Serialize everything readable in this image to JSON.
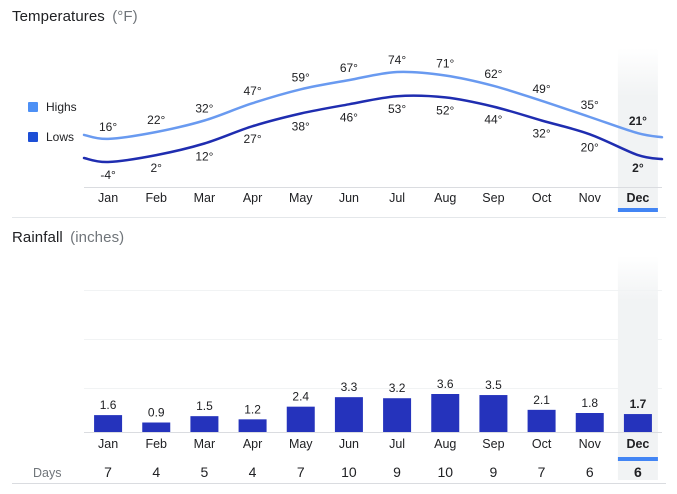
{
  "selected_month": "Dec",
  "sections": {
    "temperatures": {
      "title": "Temperatures",
      "unit": "(°F)",
      "legend": [
        {
          "label": "Highs"
        },
        {
          "label": "Lows"
        }
      ]
    },
    "rainfall": {
      "title": "Rainfall",
      "unit": "(inches)"
    },
    "days": {
      "label": "Days"
    }
  },
  "colors": {
    "highs_line": "#699af0",
    "lows_line": "#1f2db0",
    "legend_highs": "#4d90f5",
    "legend_lows": "#1d4fd6",
    "bar": "#2533bc",
    "selected_underline": "#4285f4",
    "highlight_column": "#f1f3f4",
    "axis_line": "#dadce0",
    "gridline": "#f1f3f4",
    "divider": "#e4e7ea",
    "text": "#202124",
    "muted_text": "#70757a"
  },
  "chart_data": [
    {
      "type": "line",
      "title": "Temperatures (°F)",
      "categories": [
        "Jan",
        "Feb",
        "Mar",
        "Apr",
        "May",
        "Jun",
        "Jul",
        "Aug",
        "Sep",
        "Oct",
        "Nov",
        "Dec"
      ],
      "series": [
        {
          "name": "Highs",
          "values": [
            16,
            22,
            32,
            47,
            59,
            67,
            74,
            71,
            62,
            49,
            35,
            21
          ],
          "unit": "°"
        },
        {
          "name": "Lows",
          "values": [
            -4,
            2,
            12,
            27,
            38,
            46,
            53,
            52,
            44,
            32,
            20,
            2
          ],
          "unit": "°"
        }
      ],
      "ylim": [
        -10,
        80
      ],
      "grid": false,
      "legend_position": "left",
      "highlighted_category": "Dec"
    },
    {
      "type": "bar",
      "title": "Rainfall (inches)",
      "categories": [
        "Jan",
        "Feb",
        "Mar",
        "Apr",
        "May",
        "Jun",
        "Jul",
        "Aug",
        "Sep",
        "Oct",
        "Nov",
        "Dec"
      ],
      "values": [
        1.6,
        0.9,
        1.5,
        1.2,
        2.4,
        3.3,
        3.2,
        3.6,
        3.5,
        2.1,
        1.8,
        1.7
      ],
      "ylim": [
        0,
        4
      ],
      "grid": true,
      "highlighted_category": "Dec"
    },
    {
      "type": "table",
      "title": "Days",
      "categories": [
        "Jan",
        "Feb",
        "Mar",
        "Apr",
        "May",
        "Jun",
        "Jul",
        "Aug",
        "Sep",
        "Oct",
        "Nov",
        "Dec"
      ],
      "values": [
        7,
        4,
        5,
        4,
        7,
        10,
        9,
        10,
        9,
        7,
        6,
        6
      ],
      "highlighted_category": "Dec"
    }
  ]
}
